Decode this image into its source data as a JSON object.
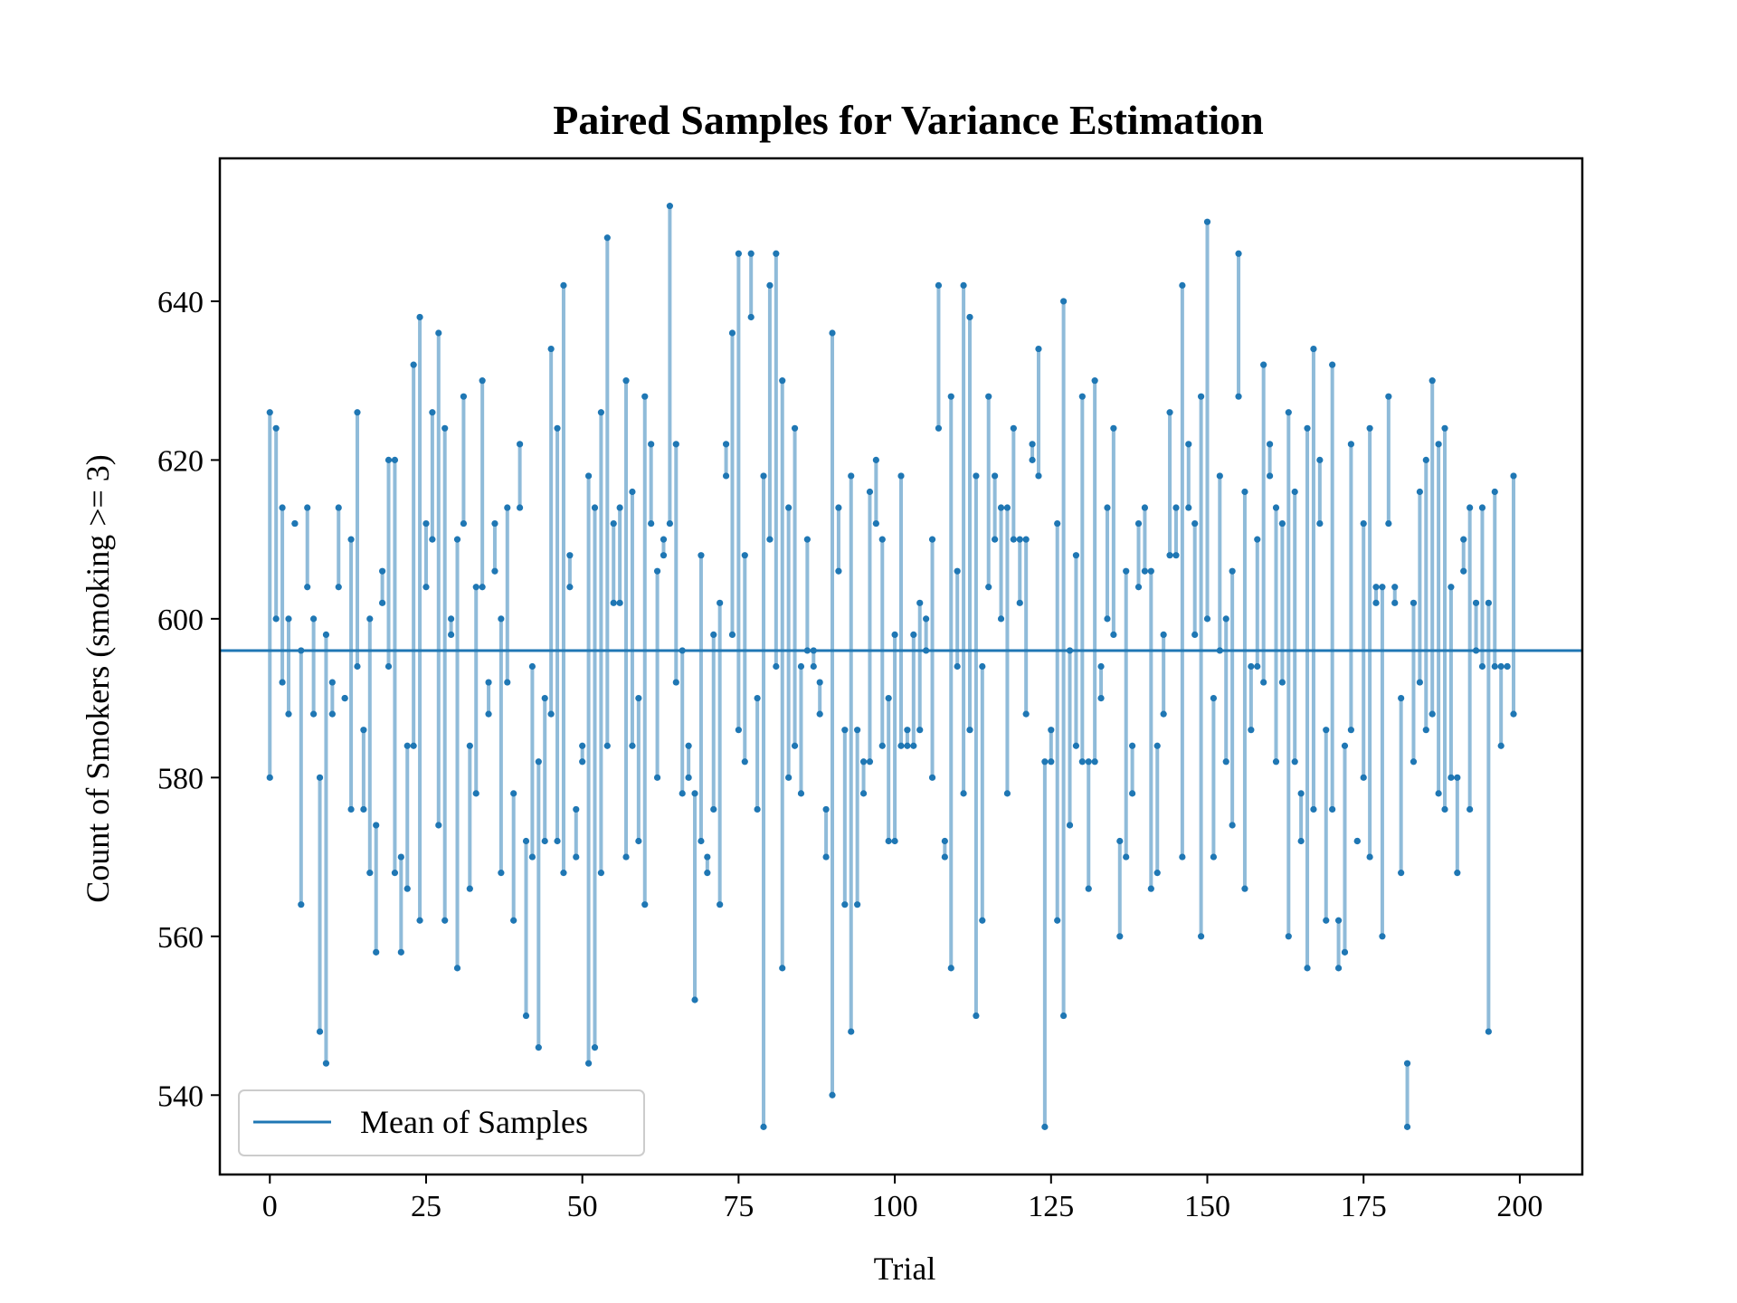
{
  "chart_data": {
    "type": "scatter",
    "title": "Paired Samples for Variance Estimation",
    "xlabel": "Trial",
    "ylabel": "Count of Smokers (smoking >= 3)",
    "xlim": [
      -8,
      210
    ],
    "ylim": [
      530,
      658
    ],
    "xticks": [
      0,
      25,
      50,
      75,
      100,
      125,
      150,
      175,
      200
    ],
    "yticks": [
      540,
      560,
      580,
      600,
      620,
      640
    ],
    "grid": false,
    "legend": {
      "position": "lower-left",
      "entries": [
        "Mean of Samples"
      ]
    },
    "mean_line": {
      "label": "Mean of Samples",
      "value": 596
    },
    "colors": {
      "pairs": "#1f77b4",
      "mean": "#1f77b4"
    },
    "pairs": [
      [
        0,
        626,
        580
      ],
      [
        1,
        624,
        600
      ],
      [
        2,
        614,
        592
      ],
      [
        3,
        600,
        588
      ],
      [
        4,
        612,
        612
      ],
      [
        5,
        596,
        564
      ],
      [
        6,
        614,
        604
      ],
      [
        7,
        600,
        588
      ],
      [
        8,
        580,
        548
      ],
      [
        9,
        598,
        544
      ],
      [
        10,
        592,
        588
      ],
      [
        11,
        614,
        604
      ],
      [
        12,
        590,
        590
      ],
      [
        13,
        610,
        576
      ],
      [
        14,
        626,
        594
      ],
      [
        15,
        586,
        576
      ],
      [
        16,
        600,
        568
      ],
      [
        17,
        574,
        558
      ],
      [
        18,
        606,
        602
      ],
      [
        19,
        620,
        594
      ],
      [
        20,
        620,
        568
      ],
      [
        21,
        570,
        558
      ],
      [
        22,
        584,
        566
      ],
      [
        23,
        632,
        584
      ],
      [
        24,
        638,
        562
      ],
      [
        25,
        612,
        604
      ],
      [
        26,
        626,
        610
      ],
      [
        27,
        636,
        574
      ],
      [
        28,
        624,
        562
      ],
      [
        29,
        600,
        598
      ],
      [
        30,
        610,
        556
      ],
      [
        31,
        628,
        612
      ],
      [
        32,
        584,
        566
      ],
      [
        33,
        604,
        578
      ],
      [
        34,
        630,
        604
      ],
      [
        35,
        592,
        588
      ],
      [
        36,
        612,
        606
      ],
      [
        37,
        600,
        568
      ],
      [
        38,
        614,
        592
      ],
      [
        39,
        578,
        562
      ],
      [
        40,
        622,
        614
      ],
      [
        41,
        572,
        550
      ],
      [
        42,
        594,
        570
      ],
      [
        43,
        582,
        546
      ],
      [
        44,
        590,
        572
      ],
      [
        45,
        634,
        588
      ],
      [
        46,
        624,
        572
      ],
      [
        47,
        642,
        568
      ],
      [
        48,
        608,
        604
      ],
      [
        49,
        576,
        570
      ],
      [
        50,
        584,
        582
      ],
      [
        51,
        618,
        544
      ],
      [
        52,
        614,
        546
      ],
      [
        53,
        626,
        568
      ],
      [
        54,
        648,
        584
      ],
      [
        55,
        612,
        602
      ],
      [
        56,
        614,
        602
      ],
      [
        57,
        630,
        570
      ],
      [
        58,
        616,
        584
      ],
      [
        59,
        590,
        572
      ],
      [
        60,
        628,
        564
      ],
      [
        61,
        622,
        612
      ],
      [
        62,
        606,
        580
      ],
      [
        63,
        610,
        608
      ],
      [
        64,
        652,
        612
      ],
      [
        65,
        622,
        592
      ],
      [
        66,
        596,
        578
      ],
      [
        67,
        584,
        580
      ],
      [
        68,
        578,
        552
      ],
      [
        69,
        608,
        572
      ],
      [
        70,
        570,
        568
      ],
      [
        71,
        598,
        576
      ],
      [
        72,
        602,
        564
      ],
      [
        73,
        622,
        618
      ],
      [
        74,
        636,
        598
      ],
      [
        75,
        646,
        586
      ],
      [
        76,
        608,
        582
      ],
      [
        77,
        646,
        638
      ],
      [
        78,
        590,
        576
      ],
      [
        79,
        618,
        536
      ],
      [
        80,
        642,
        610
      ],
      [
        81,
        646,
        594
      ],
      [
        82,
        630,
        556
      ],
      [
        83,
        614,
        580
      ],
      [
        84,
        624,
        584
      ],
      [
        85,
        594,
        578
      ],
      [
        86,
        610,
        596
      ],
      [
        87,
        596,
        594
      ],
      [
        88,
        592,
        588
      ],
      [
        89,
        576,
        570
      ],
      [
        90,
        636,
        540
      ],
      [
        91,
        614,
        606
      ],
      [
        92,
        586,
        564
      ],
      [
        93,
        618,
        548
      ],
      [
        94,
        586,
        564
      ],
      [
        95,
        582,
        578
      ],
      [
        96,
        616,
        582
      ],
      [
        97,
        620,
        612
      ],
      [
        98,
        610,
        584
      ],
      [
        99,
        590,
        572
      ],
      [
        100,
        598,
        572
      ],
      [
        101,
        618,
        584
      ],
      [
        102,
        586,
        584
      ],
      [
        103,
        598,
        584
      ],
      [
        104,
        602,
        586
      ],
      [
        105,
        600,
        596
      ],
      [
        106,
        610,
        580
      ],
      [
        107,
        642,
        624
      ],
      [
        108,
        572,
        570
      ],
      [
        109,
        628,
        556
      ],
      [
        110,
        606,
        594
      ],
      [
        111,
        642,
        578
      ],
      [
        112,
        638,
        586
      ],
      [
        113,
        618,
        550
      ],
      [
        114,
        594,
        562
      ],
      [
        115,
        628,
        604
      ],
      [
        116,
        618,
        610
      ],
      [
        117,
        614,
        600
      ],
      [
        118,
        614,
        578
      ],
      [
        119,
        624,
        610
      ],
      [
        120,
        610,
        602
      ],
      [
        121,
        610,
        588
      ],
      [
        122,
        622,
        620
      ],
      [
        123,
        634,
        618
      ],
      [
        124,
        582,
        536
      ],
      [
        125,
        586,
        582
      ],
      [
        126,
        612,
        562
      ],
      [
        127,
        640,
        550
      ],
      [
        128,
        596,
        574
      ],
      [
        129,
        608,
        584
      ],
      [
        130,
        628,
        582
      ],
      [
        131,
        582,
        566
      ],
      [
        132,
        630,
        582
      ],
      [
        133,
        594,
        590
      ],
      [
        134,
        614,
        600
      ],
      [
        135,
        624,
        598
      ],
      [
        136,
        572,
        560
      ],
      [
        137,
        606,
        570
      ],
      [
        138,
        584,
        578
      ],
      [
        139,
        612,
        604
      ],
      [
        140,
        614,
        606
      ],
      [
        141,
        606,
        566
      ],
      [
        142,
        584,
        568
      ],
      [
        143,
        598,
        588
      ],
      [
        144,
        626,
        608
      ],
      [
        145,
        614,
        608
      ],
      [
        146,
        642,
        570
      ],
      [
        147,
        622,
        614
      ],
      [
        148,
        612,
        598
      ],
      [
        149,
        628,
        560
      ],
      [
        150,
        650,
        600
      ],
      [
        151,
        590,
        570
      ],
      [
        152,
        618,
        596
      ],
      [
        153,
        600,
        582
      ],
      [
        154,
        606,
        574
      ],
      [
        155,
        646,
        628
      ],
      [
        156,
        616,
        566
      ],
      [
        157,
        594,
        586
      ],
      [
        158,
        610,
        594
      ],
      [
        159,
        632,
        592
      ],
      [
        160,
        622,
        618
      ],
      [
        161,
        614,
        582
      ],
      [
        162,
        612,
        592
      ],
      [
        163,
        626,
        560
      ],
      [
        164,
        616,
        582
      ],
      [
        165,
        578,
        572
      ],
      [
        166,
        624,
        556
      ],
      [
        167,
        634,
        576
      ],
      [
        168,
        620,
        612
      ],
      [
        169,
        586,
        562
      ],
      [
        170,
        632,
        576
      ],
      [
        171,
        562,
        556
      ],
      [
        172,
        584,
        558
      ],
      [
        173,
        622,
        586
      ],
      [
        174,
        572,
        572
      ],
      [
        175,
        612,
        580
      ],
      [
        176,
        624,
        570
      ],
      [
        177,
        604,
        602
      ],
      [
        178,
        604,
        560
      ],
      [
        179,
        628,
        612
      ],
      [
        180,
        604,
        602
      ],
      [
        181,
        590,
        568
      ],
      [
        182,
        544,
        536
      ],
      [
        183,
        602,
        582
      ],
      [
        184,
        616,
        592
      ],
      [
        185,
        620,
        586
      ],
      [
        186,
        630,
        588
      ],
      [
        187,
        622,
        578
      ],
      [
        188,
        624,
        576
      ],
      [
        189,
        604,
        580
      ],
      [
        190,
        580,
        568
      ],
      [
        191,
        610,
        606
      ],
      [
        192,
        614,
        576
      ],
      [
        193,
        602,
        596
      ],
      [
        194,
        614,
        594
      ],
      [
        195,
        602,
        548
      ],
      [
        196,
        616,
        594
      ],
      [
        197,
        594,
        584
      ],
      [
        198,
        594,
        594
      ],
      [
        199,
        618,
        588
      ]
    ]
  }
}
